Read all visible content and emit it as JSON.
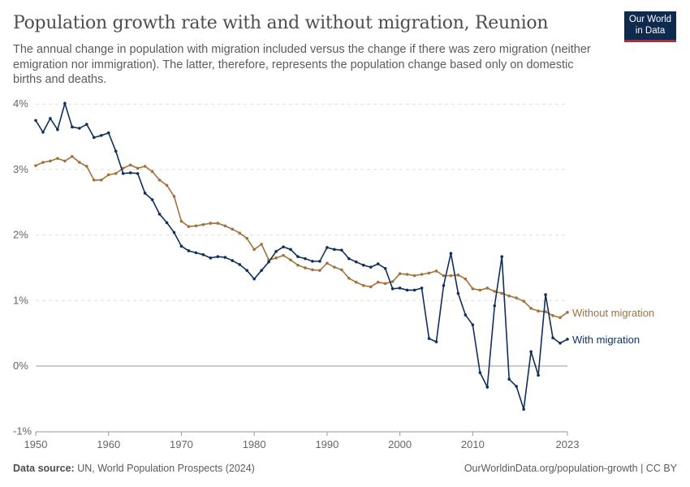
{
  "header": {
    "title": "Population growth rate with and without migration, Reunion",
    "subtitle": "The annual change in population with migration included versus the change if there was zero migration (neither emigration nor immigration). The latter, therefore, represents the population change based only on domestic births and deaths.",
    "logo_text": "Our World in Data"
  },
  "footer": {
    "source_label": "Data source:",
    "source": "UN, World Population Prospects (2024)",
    "link": "OurWorldinData.org/population-growth | CC BY"
  },
  "chart_data": {
    "type": "line",
    "title": "Population growth rate with and without migration, Reunion",
    "xlabel": "",
    "ylabel": "",
    "xlim": [
      1950,
      2023
    ],
    "ylim": [
      -1,
      4
    ],
    "x_ticks": [
      1950,
      1960,
      1970,
      1980,
      1990,
      2000,
      2010,
      2023
    ],
    "y_ticks": [
      {
        "v": -1,
        "label": "-1%"
      },
      {
        "v": 0,
        "label": "0%"
      },
      {
        "v": 1,
        "label": "1%"
      },
      {
        "v": 2,
        "label": "2%"
      },
      {
        "v": 3,
        "label": "3%"
      },
      {
        "v": 4,
        "label": "4%"
      }
    ],
    "grid": true,
    "legend": "right (inline labels)",
    "start_year": 1950,
    "series": [
      {
        "name": "Without migration",
        "color": "#a2723c",
        "values": [
          3.06,
          3.11,
          3.13,
          3.17,
          3.13,
          3.2,
          3.11,
          3.05,
          2.84,
          2.84,
          2.92,
          2.94,
          3.02,
          3.07,
          3.02,
          3.05,
          2.97,
          2.84,
          2.76,
          2.59,
          2.21,
          2.13,
          2.14,
          2.16,
          2.18,
          2.18,
          2.14,
          2.09,
          2.03,
          1.95,
          1.78,
          1.86,
          1.62,
          1.65,
          1.69,
          1.62,
          1.54,
          1.5,
          1.47,
          1.46,
          1.57,
          1.51,
          1.47,
          1.34,
          1.28,
          1.23,
          1.21,
          1.28,
          1.26,
          1.29,
          1.41,
          1.4,
          1.38,
          1.4,
          1.42,
          1.45,
          1.38,
          1.38,
          1.39,
          1.33,
          1.18,
          1.16,
          1.19,
          1.14,
          1.11,
          1.07,
          1.04,
          0.99,
          0.88,
          0.84,
          0.83,
          0.77,
          0.74,
          0.82
        ]
      },
      {
        "name": "With migration",
        "color": "#0f2f5c",
        "values": [
          3.75,
          3.57,
          3.78,
          3.61,
          4.01,
          3.65,
          3.63,
          3.69,
          3.49,
          3.52,
          3.56,
          3.28,
          2.94,
          2.95,
          2.94,
          2.64,
          2.54,
          2.32,
          2.19,
          2.04,
          1.83,
          1.76,
          1.73,
          1.7,
          1.65,
          1.67,
          1.66,
          1.61,
          1.55,
          1.46,
          1.33,
          1.46,
          1.59,
          1.75,
          1.82,
          1.78,
          1.67,
          1.64,
          1.6,
          1.6,
          1.81,
          1.78,
          1.77,
          1.64,
          1.59,
          1.54,
          1.51,
          1.56,
          1.49,
          1.18,
          1.19,
          1.16,
          1.16,
          1.19,
          0.42,
          0.37,
          1.23,
          1.72,
          1.11,
          0.78,
          0.63,
          -0.1,
          -0.32,
          0.92,
          1.67,
          -0.2,
          -0.31,
          -0.66,
          0.22,
          -0.14,
          1.09,
          0.43,
          0.35,
          0.41
        ]
      }
    ]
  }
}
